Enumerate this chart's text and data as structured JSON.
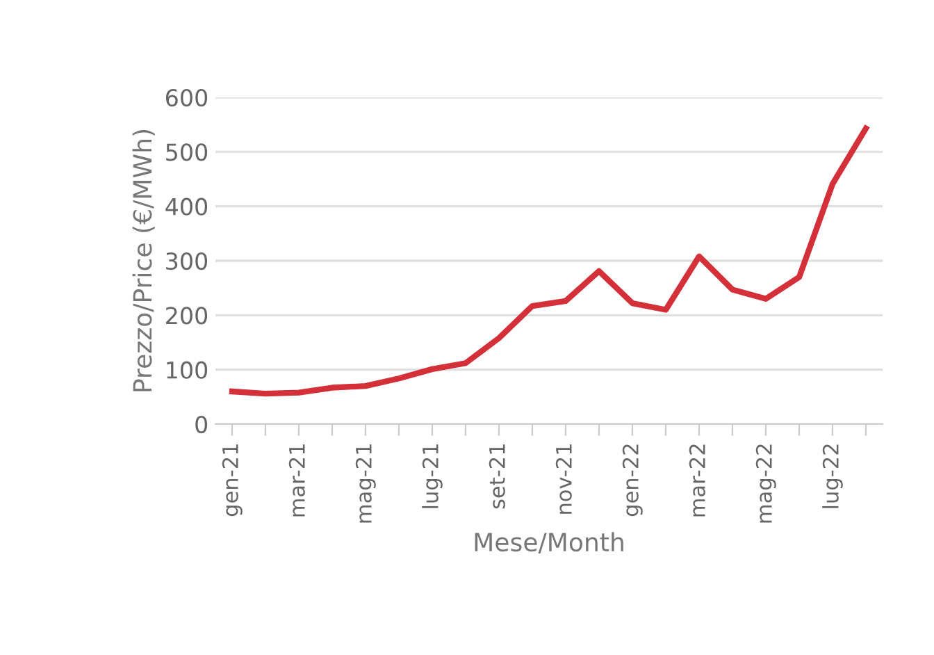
{
  "chart_data": {
    "type": "line",
    "categories": [
      "gen-21",
      null,
      "mar-21",
      null,
      "mag-21",
      null,
      "lug-21",
      null,
      "set-21",
      null,
      "nov-21",
      null,
      "gen-22",
      null,
      "mar-22",
      null,
      "mag-22",
      null,
      "lug-22",
      null
    ],
    "series": [
      {
        "color": "#d4303a",
        "values": [
          60,
          56,
          58,
          67,
          70,
          84,
          101,
          112,
          158,
          217,
          226,
          281,
          222,
          210,
          308,
          247,
          230,
          270,
          441,
          543
        ]
      }
    ],
    "xlabel": "Mese/Month",
    "ylabel": "Prezzo/Price (€/MWh)",
    "ylim": [
      0,
      600
    ],
    "yticks": [
      0,
      100,
      200,
      300,
      400,
      500,
      600
    ],
    "grid": "y",
    "legend": false,
    "marker": "none",
    "line_style": "solid"
  }
}
